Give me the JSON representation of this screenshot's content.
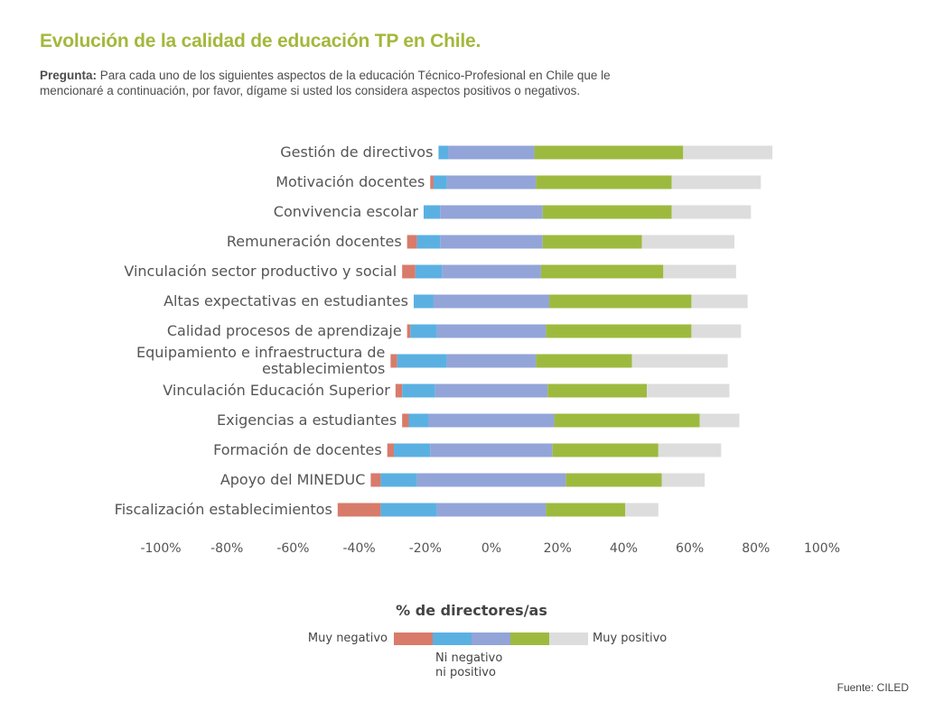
{
  "title": "Evolución de la calidad de educación TP en Chile.",
  "question_label": "Pregunta:",
  "question_text": " Para cada uno de los siguientes aspectos de la educación Técnico-Profesional en Chile que le mencionaré a continuación, por favor, dígame si usted los considera aspectos positivos o negativos.",
  "source": "Fuente: CILED",
  "legend": {
    "left_label": "Muy negativo",
    "right_label": "Muy positivo",
    "mid_label_line1": "Ni negativo",
    "mid_label_line2": "ni positivo"
  },
  "chart_data": {
    "type": "bar",
    "orientation": "horizontal",
    "stacked": "diverging",
    "xlabel": "% de directores/as",
    "ylabel": "",
    "xlim": [
      -100,
      100
    ],
    "x_tick_labels": [
      "-100%",
      "-80%",
      "-60%",
      "-40%",
      "-20%",
      "0%",
      "20%",
      "40%",
      "60%",
      "80%",
      "100%"
    ],
    "categories": [
      "Gestión de directivos",
      "Motivación docentes",
      "Convivencia escolar",
      "Remuneración docentes",
      "Vinculación sector productivo y social",
      "Altas expectativas en estudiantes",
      "Calidad procesos de aprendizaje",
      "Equipamiento e infraestructura de establecimientos",
      "Vinculación Educación Superior",
      "Exigencias a estudiantes",
      "Formación de docentes",
      "Apoyo del MINEDUC",
      "Fiscalización establecimientos"
    ],
    "category_lines": [
      [
        "Gestión de directivos"
      ],
      [
        "Motivación docentes"
      ],
      [
        "Convivencia escolar"
      ],
      [
        "Remuneración docentes"
      ],
      [
        "Vinculación sector productivo y social"
      ],
      [
        "Altas expectativas en estudiantes"
      ],
      [
        "Calidad procesos de aprendizaje"
      ],
      [
        "Equipamiento e infraestructura de",
        "establecimientos"
      ],
      [
        "Vinculación Educación Superior"
      ],
      [
        "Exigencias a estudiantes"
      ],
      [
        "Formación de docentes"
      ],
      [
        "Apoyo del MINEDUC"
      ],
      [
        "Fiscalización establecimientos"
      ]
    ],
    "segment_colors": [
      "#d87b6a",
      "#5bb0e2",
      "#93a4d8",
      "#9dba3f",
      "#dddddd"
    ],
    "series": [
      {
        "values": [
          0,
          1,
          0,
          3,
          4,
          0,
          1,
          2,
          2,
          2,
          2,
          3,
          13
        ]
      },
      {
        "values": [
          3,
          4,
          5,
          7,
          8,
          6,
          8,
          15,
          10,
          6,
          11,
          11,
          17
        ]
      },
      {
        "values": [
          26,
          27,
          31,
          31,
          30,
          35,
          33,
          27,
          34,
          38,
          37,
          45,
          33
        ]
      },
      {
        "values": [
          45,
          41,
          39,
          30,
          37,
          43,
          44,
          29,
          30,
          44,
          32,
          29,
          24
        ]
      },
      {
        "values": [
          27,
          27,
          24,
          28,
          22,
          17,
          15,
          29,
          25,
          12,
          19,
          13,
          10
        ]
      }
    ]
  }
}
